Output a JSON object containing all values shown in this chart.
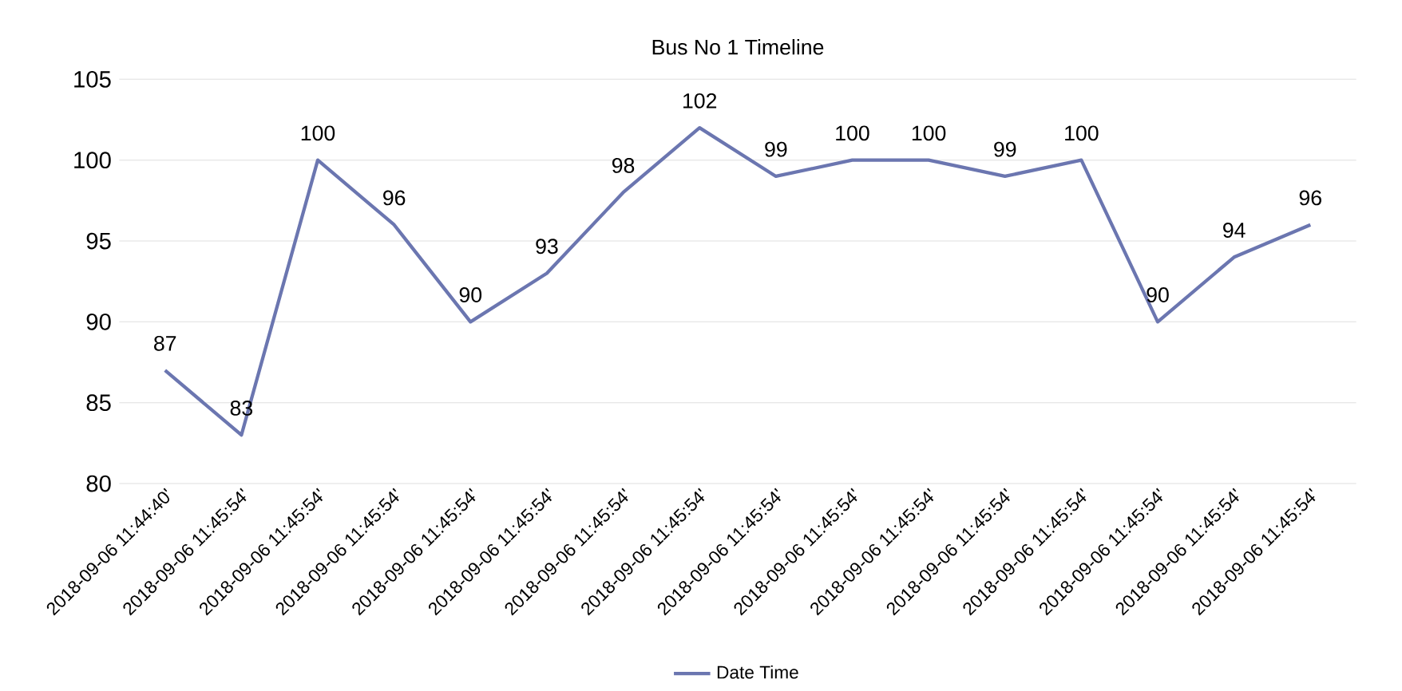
{
  "chart_data": {
    "type": "line",
    "title": "Bus No 1 Timeline",
    "categories": [
      "2018-09-06 11:44:40'",
      "2018-09-06 11:45:54'",
      "2018-09-06 11:45:54'",
      "2018-09-06 11:45:54'",
      "2018-09-06 11:45:54'",
      "2018-09-06 11:45:54'",
      "2018-09-06 11:45:54'",
      "2018-09-06 11:45:54'",
      "2018-09-06 11:45:54'",
      "2018-09-06 11:45:54'",
      "2018-09-06 11:45:54'",
      "2018-09-06 11:45:54'",
      "2018-09-06 11:45:54'",
      "2018-09-06 11:45:54'",
      "2018-09-06 11:45:54'",
      "2018-09-06 11:45:54'"
    ],
    "series": [
      {
        "name": "Date Time",
        "color": "#6b76b0",
        "values": [
          87,
          83,
          100,
          96,
          90,
          93,
          98,
          102,
          99,
          100,
          100,
          99,
          100,
          90,
          94,
          96
        ]
      }
    ],
    "ylim": [
      80,
      105
    ],
    "yticks": [
      80,
      85,
      90,
      95,
      100,
      105
    ],
    "grid": "y",
    "legend": "bottom",
    "data_labels": true,
    "marker": "none",
    "line_style": "solid"
  }
}
